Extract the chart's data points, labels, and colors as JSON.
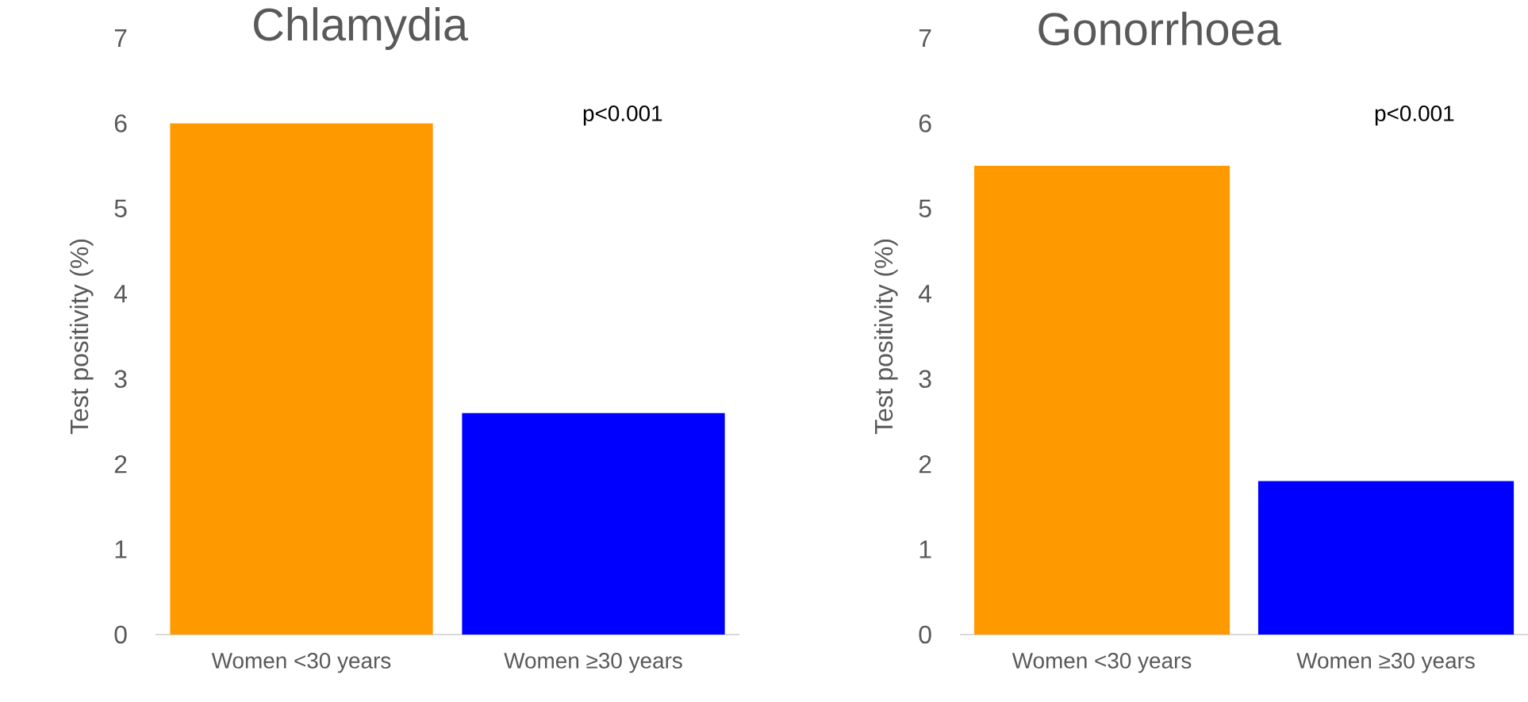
{
  "chart_data": [
    {
      "type": "bar",
      "title": "Chlamydia",
      "ylabel": "Test positivity (%)",
      "categories": [
        "Women <30 years",
        "Women ≥30 years"
      ],
      "values": [
        6.0,
        2.6
      ],
      "colors": [
        "#ff9900",
        "#0000ff"
      ],
      "ylim": [
        0,
        7
      ],
      "yticks": [
        0,
        1,
        2,
        3,
        4,
        5,
        6,
        7
      ],
      "grid": false,
      "annotations": [
        "p<0.001"
      ]
    },
    {
      "type": "bar",
      "title": "Gonorrhoea",
      "ylabel": "Test positivity (%)",
      "categories": [
        "Women <30 years",
        "Women ≥30 years"
      ],
      "values": [
        5.5,
        1.8
      ],
      "colors": [
        "#ff9900",
        "#0000ff"
      ],
      "ylim": [
        0,
        7
      ],
      "yticks": [
        0,
        1,
        2,
        3,
        4,
        5,
        6,
        7
      ],
      "grid": false,
      "annotations": [
        "p<0.001"
      ]
    }
  ]
}
